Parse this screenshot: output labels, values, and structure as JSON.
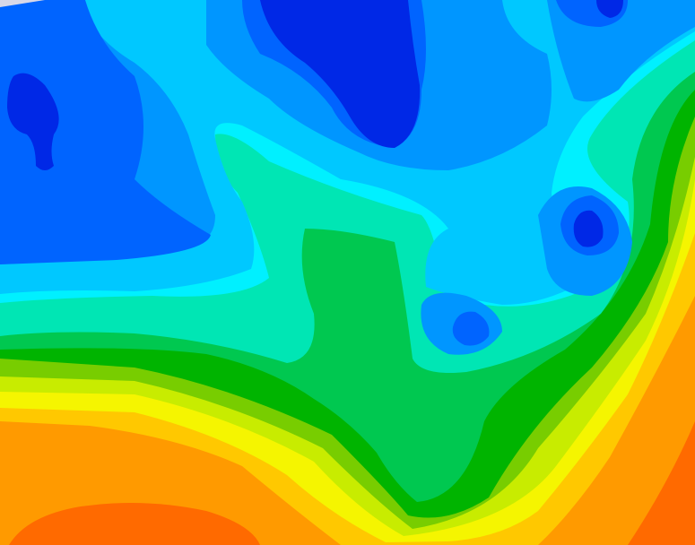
{
  "map": {
    "colors": {
      "dark_orange": "#ff6a00",
      "orange": "#ff9a00",
      "gold": "#ffc800",
      "yellow": "#f5f500",
      "yellow_green": "#c8ec00",
      "lime": "#78cd00",
      "dark_green": "#00b400",
      "green": "#00c850",
      "aquamarine": "#00e6b4",
      "cyan": "#00f0ff",
      "light_blue": "#00c8ff",
      "medium_blue": "#0096ff",
      "blue": "#0064ff",
      "dark_blue": "#0028e6",
      "corner_gray": "#d8d8e8"
    }
  }
}
